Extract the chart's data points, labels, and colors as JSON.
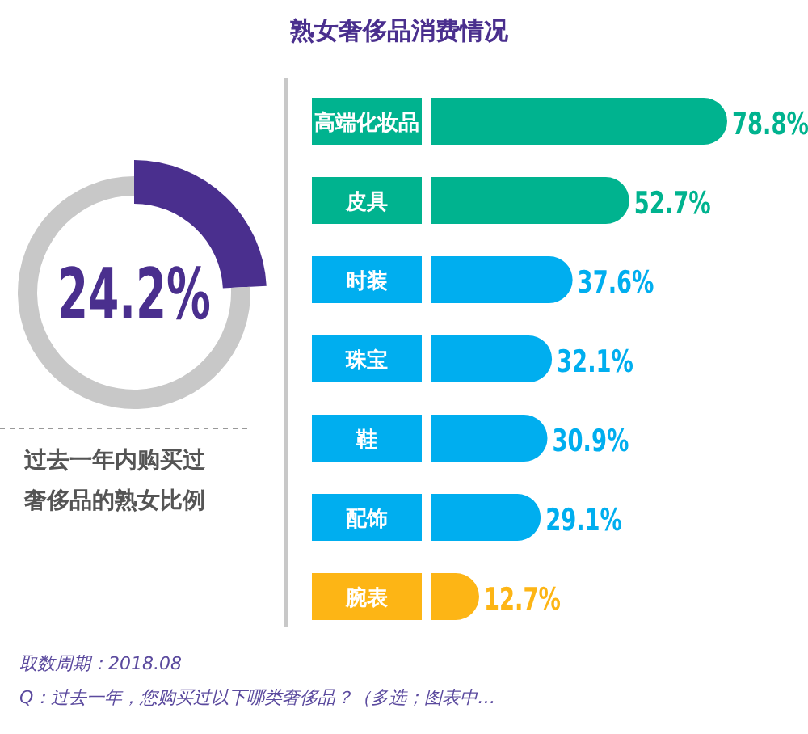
{
  "chart_data": [
    {
      "type": "donut",
      "categories": [
        null,
        null
      ],
      "values": [
        24.2,
        75.8
      ],
      "colors": [
        "#4a2f8e",
        "#c8c8c8"
      ],
      "annotations": [
        "24.2%",
        "过去一年内购买过",
        "奢侈品的熟女比例"
      ]
    },
    {
      "type": "bar",
      "orientation": "horizontal",
      "title": "熟女奢侈品消费情况",
      "categories": [
        "高端化妆品",
        "皮具",
        "时装",
        "珠宝",
        "鞋",
        "配饰",
        "腕表"
      ],
      "values": [
        78.8,
        52.7,
        37.6,
        32.1,
        30.9,
        29.1,
        12.7
      ],
      "colors": [
        "#00b38f",
        "#00b38f",
        "#00aeef",
        "#00aeef",
        "#00aeef",
        "#00aeef",
        "#fdb515"
      ],
      "value_labels": [
        "78.8%",
        "52.7%",
        "37.6%",
        "32.1%",
        "30.9%",
        "29.1%",
        "12.7%"
      ],
      "annotations": [
        "取数周期：2018.08",
        "Q：过去一年，您购买过以下哪类奢侈品？（多选；图表中…"
      ]
    }
  ]
}
